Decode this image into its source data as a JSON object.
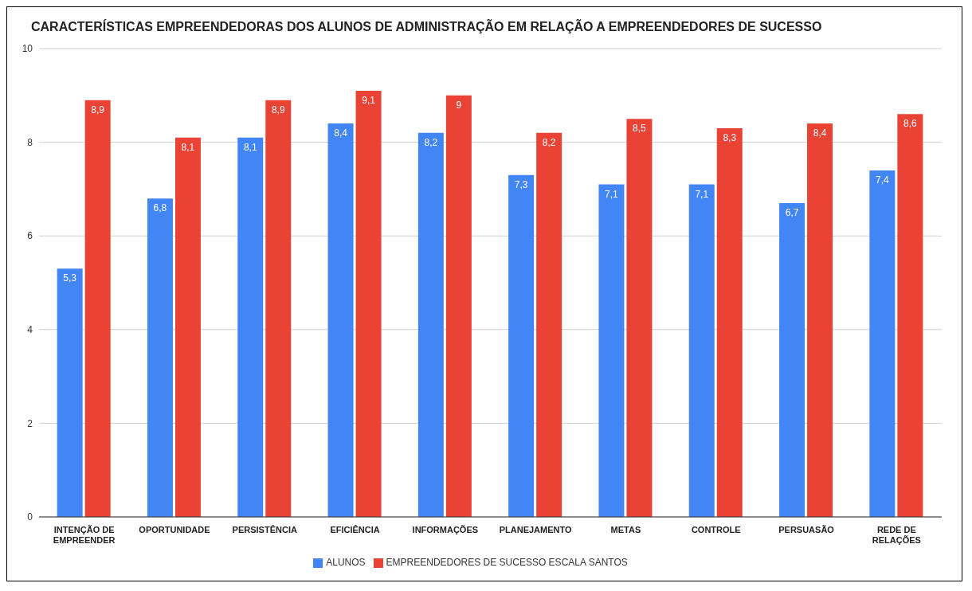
{
  "chart_data": {
    "type": "bar",
    "title": "CARACTERÍSTICAS EMPREENDEDORAS DOS ALUNOS DE ADMINISTRAÇÃO EM RELAÇÃO A EMPREENDEDORES DE SUCESSO",
    "categories": [
      "INTENÇÃO DE EMPREENDER",
      "OPORTUNIDADE",
      "PERSISTÊNCIA",
      "EFICIÊNCIA",
      "INFORMAÇÕES",
      "PLANEJAMENTO",
      "METAS",
      "CONTROLE",
      "PERSUASÃO",
      "REDE DE RELAÇÕES"
    ],
    "series": [
      {
        "name": "ALUNOS",
        "color": "#4285f4",
        "values": [
          5.3,
          6.8,
          8.1,
          8.4,
          8.2,
          7.3,
          7.1,
          7.1,
          6.7,
          7.4
        ],
        "value_labels": [
          "5,3",
          "6,8",
          "8,1",
          "8,4",
          "8,2",
          "7,3",
          "7,1",
          "7,1",
          "6,7",
          "7,4"
        ]
      },
      {
        "name": "EMPREENDEDORES DE SUCESSO ESCALA SANTOS",
        "color": "#ea4335",
        "values": [
          8.9,
          8.1,
          8.9,
          9.1,
          9.0,
          8.2,
          8.5,
          8.3,
          8.4,
          8.6
        ],
        "value_labels": [
          "8,9",
          "8,1",
          "8,9",
          "9,1",
          "9",
          "8,2",
          "8,5",
          "8,3",
          "8,4",
          "8,6"
        ]
      }
    ],
    "ylim": [
      0,
      10
    ],
    "yticks": [
      0,
      2,
      4,
      6,
      8,
      10
    ],
    "grid": "y",
    "legend": "bottom"
  }
}
